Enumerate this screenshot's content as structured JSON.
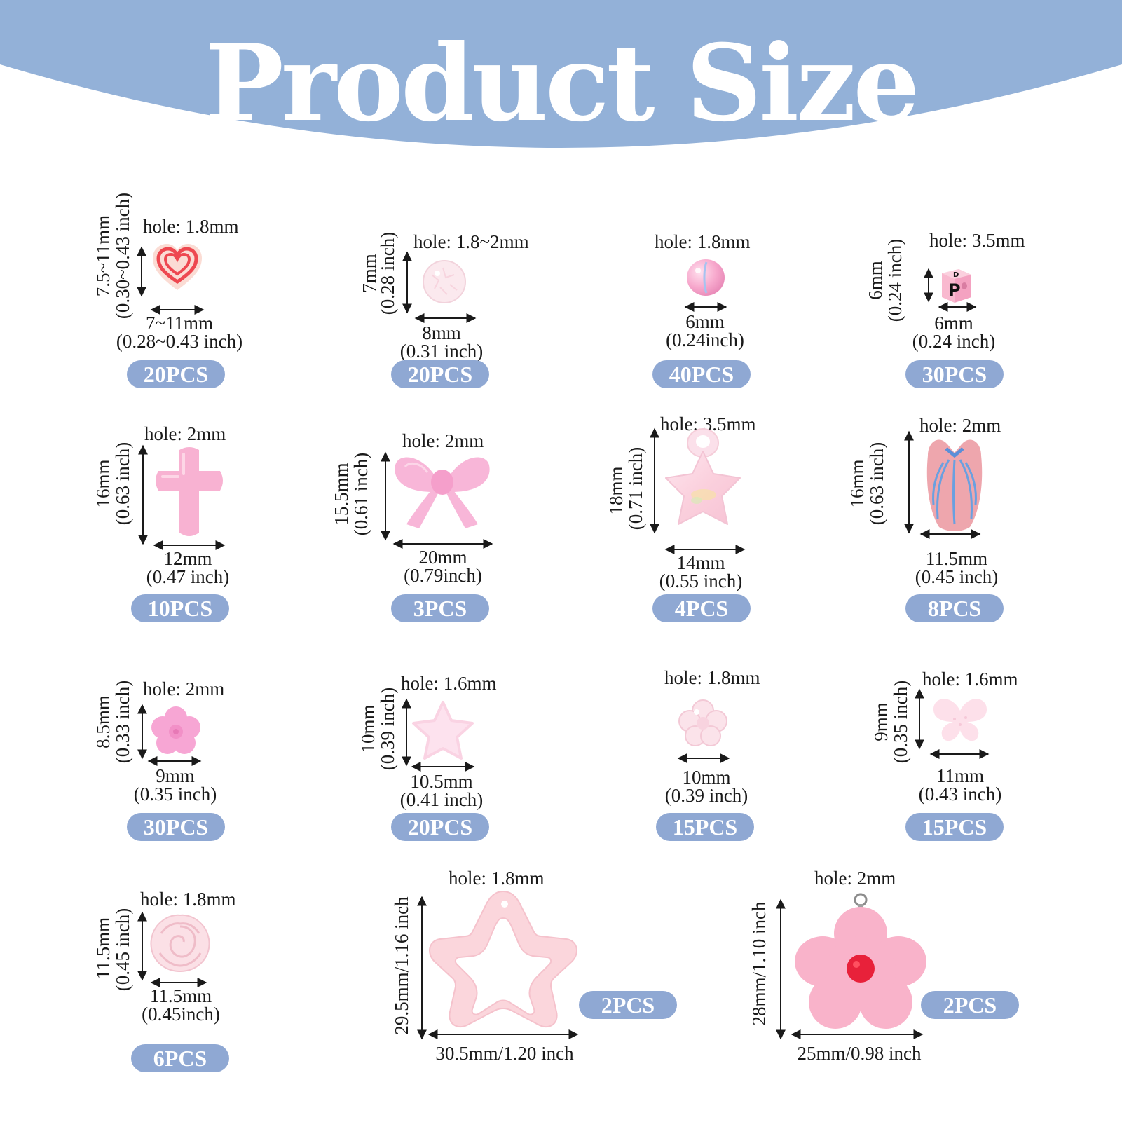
{
  "title": "Product Size",
  "colors": {
    "banner": "#93b1d8",
    "badge": "#8fa8d3",
    "pink": "#f7b6cf"
  },
  "items": [
    {
      "icon": "heart-bead-icon",
      "hole": "hole: 1.8mm",
      "w1": "7~11mm",
      "w2": "(0.28~0.43 inch)",
      "h1": "7.5~11mm",
      "h2": "(0.30~0.43 inch)",
      "qty": "20PCS"
    },
    {
      "icon": "clear-round-bead-icon",
      "hole": "hole: 1.8~2mm",
      "w1": "8mm",
      "w2": "(0.31 inch)",
      "h1": "7mm",
      "h2": "(0.28 inch)",
      "qty": "20PCS"
    },
    {
      "icon": "pink-pearl-bead-icon",
      "hole": "hole: 1.8mm",
      "w1": "6mm",
      "w2": "(0.24inch)",
      "h1": "",
      "h2": "",
      "qty": "40PCS"
    },
    {
      "icon": "letter-cube-bead-icon",
      "hole": "hole: 3.5mm",
      "w1": "6mm",
      "w2": "(0.24 inch)",
      "h1": "6mm",
      "h2": "(0.24 inch)",
      "qty": "30PCS"
    },
    {
      "icon": "cross-bead-icon",
      "hole": "hole: 2mm",
      "w1": "12mm",
      "w2": "(0.47 inch)",
      "h1": "16mm",
      "h2": "(0.63 inch)",
      "qty": "10PCS"
    },
    {
      "icon": "bow-bead-icon",
      "hole": "hole: 2mm",
      "w1": "20mm",
      "w2": "(0.79inch)",
      "h1": "15.5mm",
      "h2": "(0.61 inch)",
      "qty": "3PCS"
    },
    {
      "icon": "star-pendant-icon",
      "hole": "hole: 3.5mm",
      "w1": "14mm",
      "w2": "(0.55 inch)",
      "h1": "18mm",
      "h2": "(0.71 inch)",
      "qty": "4PCS"
    },
    {
      "icon": "tulip-bead-icon",
      "hole": "hole: 2mm",
      "w1": "11.5mm",
      "w2": "(0.45 inch)",
      "h1": "16mm",
      "h2": "(0.63 inch)",
      "qty": "8PCS"
    },
    {
      "icon": "flower-bead-icon",
      "hole": "hole: 2mm",
      "w1": "9mm",
      "w2": "(0.35 inch)",
      "h1": "8.5mm",
      "h2": "(0.33 inch)",
      "qty": "30PCS"
    },
    {
      "icon": "frosted-star-bead-icon",
      "hole": "hole: 1.6mm",
      "w1": "10.5mm",
      "w2": "(0.41 inch)",
      "h1": "10mm",
      "h2": "(0.39 inch)",
      "qty": "20PCS"
    },
    {
      "icon": "clear-flower-bead-icon",
      "hole": "hole: 1.8mm",
      "w1": "10mm",
      "w2": "(0.39 inch)",
      "h1": "",
      "h2": "",
      "qty": "15PCS"
    },
    {
      "icon": "butterfly-bead-icon",
      "hole": "hole: 1.6mm",
      "w1": "11mm",
      "w2": "(0.43 inch)",
      "h1": "9mm",
      "h2": "(0.35 inch)",
      "qty": "15PCS"
    },
    {
      "icon": "rose-bead-icon",
      "hole": "hole: 1.8mm",
      "w1": "11.5mm",
      "w2": "(0.45inch)",
      "h1": "11.5mm",
      "h2": "(0.45 inch)",
      "qty": "6PCS"
    },
    {
      "icon": "star-frame-pendant-icon",
      "hole": "hole: 1.8mm",
      "w1": "30.5mm/1.20 inch",
      "h1": "29.5mm/1.16 inch",
      "qty": "2PCS"
    },
    {
      "icon": "flower-pendant-icon",
      "hole": "hole: 2mm",
      "w1": "25mm/0.98 inch",
      "h1": "28mm/1.10 inch",
      "qty": "2PCS"
    }
  ]
}
